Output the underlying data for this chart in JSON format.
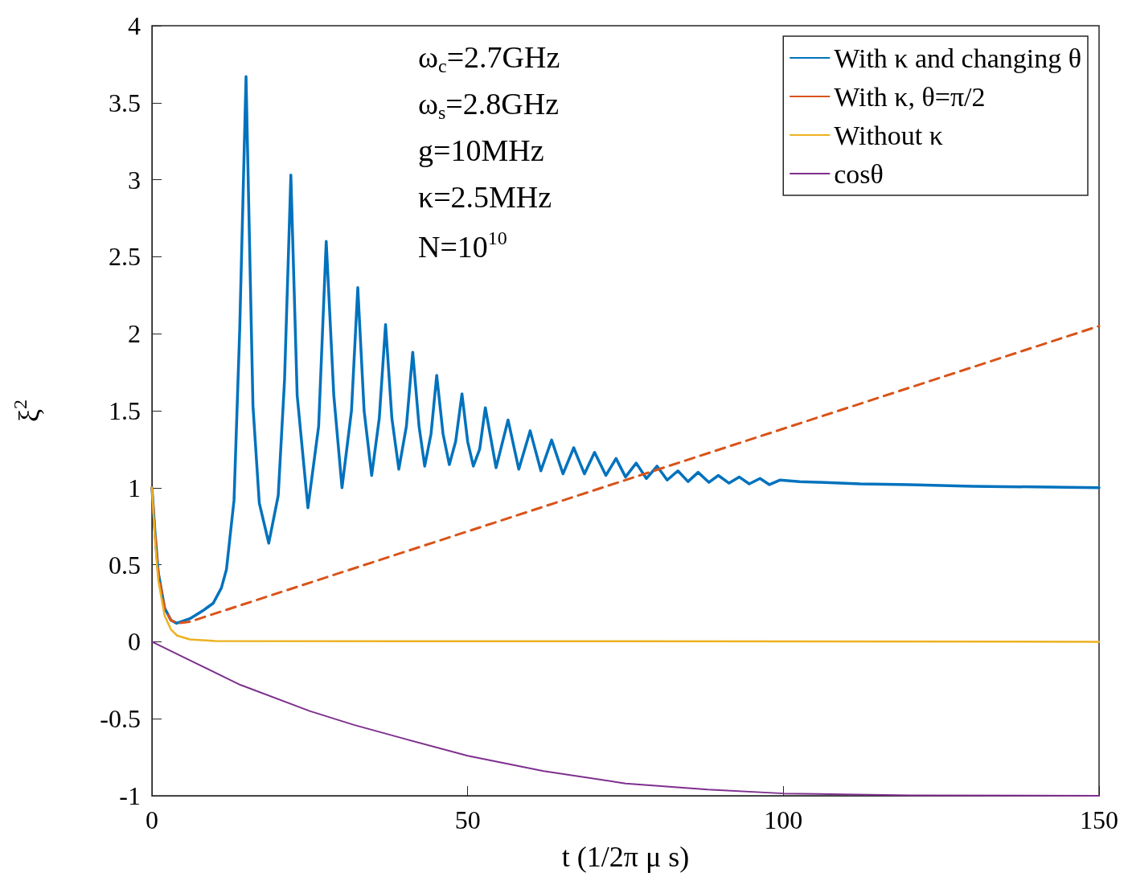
{
  "chart_data": {
    "type": "line",
    "xlabel": "t (1/2π μ s)",
    "ylabel": "ξ$^{2}$",
    "xlim": [
      0,
      150
    ],
    "ylim": [
      -1,
      4
    ],
    "xticks": [
      0,
      50,
      100,
      150
    ],
    "yticks": [
      -1,
      -0.5,
      0,
      0.5,
      1,
      1.5,
      2,
      2.5,
      3,
      3.5,
      4
    ],
    "grid": false,
    "legend": "top right",
    "marker": "none",
    "annotations": [
      "ω$_{c}$=2.7GHz",
      "ω$_{s}$=2.8GHz",
      "g=10MHz",
      "κ=2.5MHz",
      "N=10$^{10}$"
    ],
    "series": [
      {
        "name": "With κ and changing θ",
        "color": "#0072bd",
        "line_style": "solid",
        "x": [
          0,
          0.5,
          1,
          2,
          3,
          3.9,
          6,
          8,
          9.7,
          11,
          11.8,
          13,
          13.9,
          14.9,
          16,
          17,
          18.5,
          20,
          21,
          22,
          23,
          24.7,
          26.4,
          27.6,
          28.8,
          30.1,
          31.6,
          32.6,
          33.6,
          34.8,
          36,
          37,
          38,
          39.1,
          40.3,
          41.3,
          42.3,
          43.2,
          44.2,
          45.1,
          46.1,
          47.1,
          48.1,
          49.1,
          50,
          50.9,
          51.9,
          52.8,
          54.5,
          56.4,
          58.1,
          59.9,
          61.6,
          63.3,
          65.1,
          66.8,
          68.5,
          70.1,
          71.9,
          73.5,
          75,
          76.7,
          78.3,
          80,
          81.6,
          83.3,
          84.9,
          86.5,
          88.2,
          89.7,
          91.4,
          93,
          94.6,
          96.3,
          97.8,
          99.5,
          102.6,
          105.8,
          109,
          112.2,
          120,
          130,
          150
        ],
        "values": [
          1.0,
          0.7,
          0.45,
          0.22,
          0.14,
          0.12,
          0.15,
          0.2,
          0.25,
          0.35,
          0.47,
          0.92,
          2.03,
          3.67,
          1.53,
          0.9,
          0.64,
          0.95,
          1.7,
          3.03,
          1.6,
          0.87,
          1.4,
          2.6,
          1.6,
          1.0,
          1.5,
          2.3,
          1.5,
          1.08,
          1.45,
          2.06,
          1.45,
          1.12,
          1.4,
          1.88,
          1.4,
          1.14,
          1.35,
          1.73,
          1.35,
          1.15,
          1.3,
          1.61,
          1.3,
          1.14,
          1.25,
          1.52,
          1.13,
          1.44,
          1.12,
          1.37,
          1.11,
          1.31,
          1.09,
          1.26,
          1.09,
          1.23,
          1.08,
          1.19,
          1.07,
          1.16,
          1.06,
          1.14,
          1.05,
          1.11,
          1.04,
          1.1,
          1.035,
          1.08,
          1.03,
          1.07,
          1.025,
          1.06,
          1.02,
          1.05,
          1.04,
          1.035,
          1.03,
          1.025,
          1.02,
          1.01,
          1.0
        ]
      },
      {
        "name": "With κ, θ=π/2",
        "color": "#d95319",
        "line_style": "dashed",
        "x": [
          0,
          0.5,
          1,
          2,
          3,
          4,
          6,
          150
        ],
        "values": [
          1.0,
          0.7,
          0.45,
          0.22,
          0.14,
          0.12,
          0.13,
          2.05
        ]
      },
      {
        "name": "Without κ",
        "color": "#edb120",
        "line_style": "solid",
        "x": [
          0,
          0.5,
          1,
          2,
          3,
          4,
          6,
          10,
          150
        ],
        "values": [
          1.0,
          0.65,
          0.4,
          0.17,
          0.08,
          0.04,
          0.015,
          0.005,
          0
        ]
      },
      {
        "name": "cosθ",
        "color": "#7e2f8e",
        "line_style": "solid",
        "x": [
          0,
          5,
          14,
          25,
          32,
          40,
          50,
          62,
          75,
          88,
          100,
          120,
          150
        ],
        "values": [
          0,
          -0.1,
          -0.28,
          -0.45,
          -0.54,
          -0.63,
          -0.74,
          -0.84,
          -0.92,
          -0.96,
          -0.985,
          -0.998,
          -1.0
        ]
      }
    ]
  }
}
